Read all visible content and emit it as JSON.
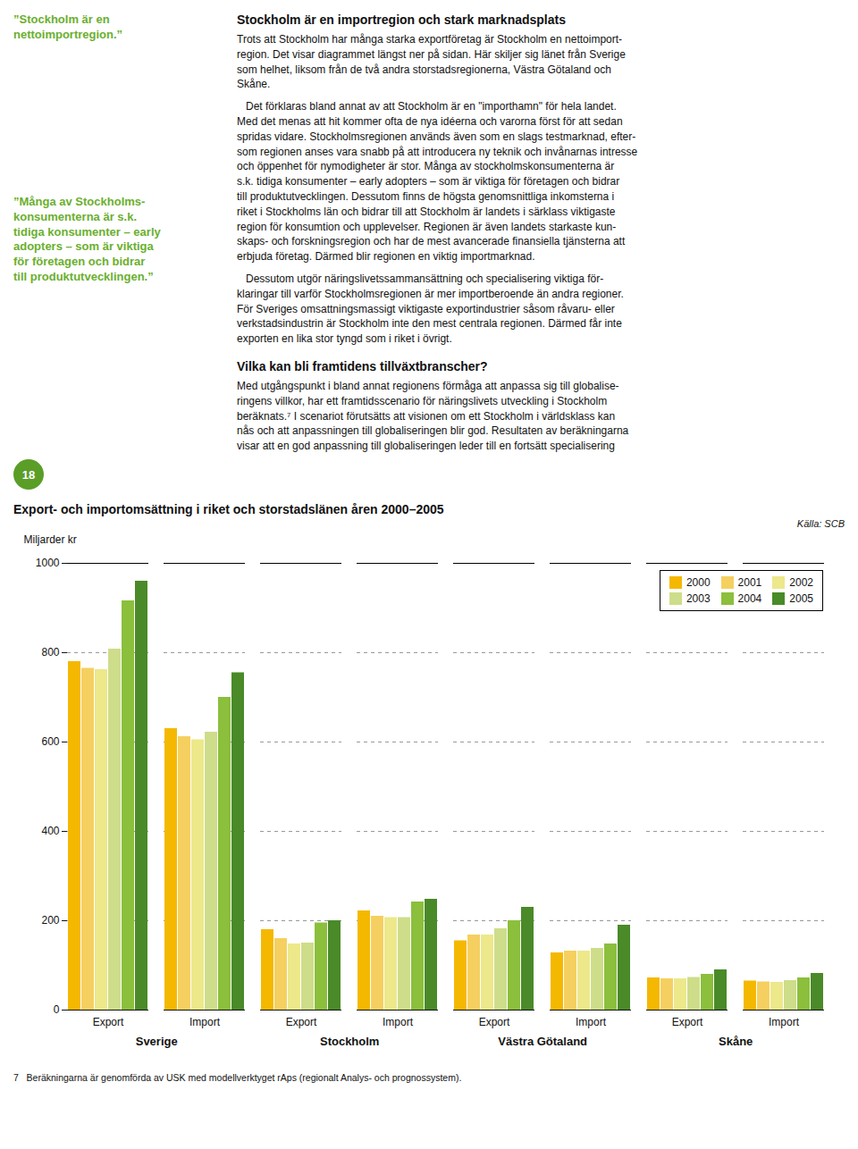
{
  "chart_data": {
    "type": "bar",
    "title": "Export- och importomsättning i riket och storstadslänen åren 2000–2005",
    "ylabel": "Miljarder kr",
    "categories": [
      "Export",
      "Import",
      "Export",
      "Import",
      "Export",
      "Import",
      "Export",
      "Import"
    ],
    "groups": [
      "Sverige",
      "Stockholm",
      "Västra Götaland",
      "Skåne"
    ],
    "series": [
      {
        "name": "2000",
        "color": "#F5B800",
        "values": [
          780,
          630,
          180,
          222,
          155,
          128,
          72,
          65
        ]
      },
      {
        "name": "2001",
        "color": "#F5D060",
        "values": [
          765,
          612,
          160,
          210,
          168,
          132,
          70,
          63
        ]
      },
      {
        "name": "2002",
        "color": "#EDE88A",
        "values": [
          762,
          605,
          148,
          207,
          168,
          132,
          70,
          62
        ]
      },
      {
        "name": "2003",
        "color": "#CEDD8A",
        "values": [
          808,
          622,
          150,
          207,
          182,
          138,
          73,
          66
        ]
      },
      {
        "name": "2004",
        "color": "#8BBF3C",
        "values": [
          916,
          700,
          195,
          242,
          200,
          148,
          80,
          72
        ]
      },
      {
        "name": "2005",
        "color": "#4A8A28",
        "values": [
          960,
          755,
          200,
          248,
          230,
          190,
          90,
          82
        ]
      }
    ],
    "ylim": [
      0,
      1000
    ],
    "yticks": [
      0,
      200,
      400,
      600,
      800,
      1000
    ],
    "grid": true,
    "legend": "upper right",
    "annotations": [
      "Källa: SCB",
      "7   Beräkningarna är genomförda av USK med modellverktyget rAps (regionalt Analys- och prognossystem).",
      "Stockholm är en importregion och stark marknadsplats",
      "Trots att Stockholm har många starka exportföretag är Stockholm en nettoimport-\nregion. Det visar diagrammet längst ner på sidan. Här skiljer sig länet från Sverige\nsom helhet, liksom från de två andra storstadsregionerna, Västra Götaland och\nSkåne.",
      "   Det förklaras bland annat av att Stockholm är en \"importhamn\" för hela landet.\nMed det menas att hit kommer ofta de nya idéerna och varorna först för att sedan\nspridas vidare. Stockholmsregionen används även som en slags testmarknad, efter-\nsom regionen anses vara snabb på att introducera ny teknik och invånarnas intresse\noch öppenhet för nymodigheter är stor. Många av stockholmskonsumenterna är\ns.k. tidiga konsumenter – early adopters – som är viktiga för företagen och bidrar\ntill produktutvecklingen. Dessutom finns de högsta genomsnittliga inkomsterna i\nriket i Stockholms län och bidrar till att Stockholm är landets i särklass viktigaste\nregion för konsumtion och upplevelser. Regionen är även landets starkaste kun-\nskaps- och forskningsregion och har de mest avancerade finansiella tjänsterna att\nerbjuda företag. Därmed blir regionen en viktig importmarknad.",
      "   Dessutom utgör näringslivetssammansättning och specialisering viktiga för-\nklaringar till varför Stockholmsregionen är mer importberoende än andra regioner.\nFör Sveriges omsattningsmassigt viktigaste exportindustrier såsom råvaru- eller\nverkstadsindustrin är Stockholm inte den mest centrala regionen. Därmed får inte\nexporten en lika stor tyngd som i riket i övrigt.",
      "Vilka kan bli framtidens tillväxtbranscher?",
      "Med utgångspunkt i bland annat regionens förmåga att anpassa sig till globalise-\nringens villkor, har ett framtidsscenario för näringslivets utveckling i Stockholm\nberäknats.⁷ I scenariot förutsätts att visionen om ett Stockholm i världsklass kan\nnås och att anpassningen till globaliseringen blir god. Resultaten av beräkningarna\nvisar att en god anpassning till globaliseringen leder till en fortsätt specialisering",
      "”Stockholm är en\nnettoimportregion.”",
      "”Många av Stockholms-\nkonsumenterna är s.k.\ntidiga konsumenter – early\nadopters – som är viktiga\nför företagen och bidrar\ntill produktutvecklingen.”",
      "18"
    ]
  }
}
